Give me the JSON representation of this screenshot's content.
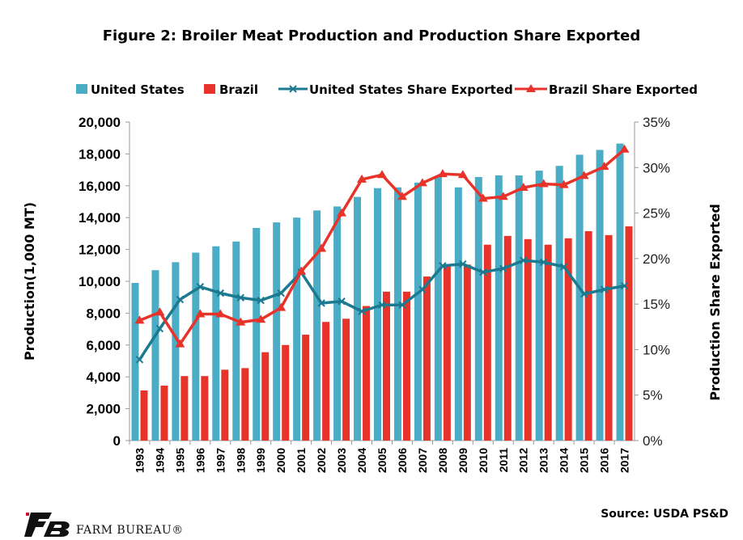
{
  "title": "Figure 2: Broiler Meat Production and Production Share Exported",
  "source": "Source: USDA PS&D",
  "brand": {
    "name": "FARM BUREAU®"
  },
  "colors": {
    "us": "#4bacc6",
    "brazil": "#e8332a",
    "us_line": "#1b7a8f",
    "brazil_line": "#e8332a"
  },
  "chart_data": {
    "type": "bar",
    "categories": [
      "1993",
      "1994",
      "1995",
      "1996",
      "1997",
      "1998",
      "1999",
      "2000",
      "2001",
      "2002",
      "2003",
      "2004",
      "2005",
      "2006",
      "2007",
      "2008",
      "2009",
      "2010",
      "2011",
      "2012",
      "2013",
      "2014",
      "2015",
      "2016",
      "2017"
    ],
    "ylabel": "Production(1,000 MT)",
    "y2label": "Production Share Exported",
    "ylim": [
      0,
      20000
    ],
    "y2lim": [
      0,
      35
    ],
    "yticks": [
      "0",
      "2,000",
      "4,000",
      "6,000",
      "8,000",
      "10,000",
      "12,000",
      "14,000",
      "16,000",
      "18,000",
      "20,000"
    ],
    "y2ticks": [
      "0%",
      "5%",
      "10%",
      "15%",
      "20%",
      "25%",
      "30%",
      "35%"
    ],
    "legend_position": "top",
    "series": [
      {
        "name": "United States",
        "kind": "bar",
        "values": [
          9900,
          10700,
          11200,
          11800,
          12200,
          12500,
          13350,
          13700,
          14000,
          14450,
          14700,
          15300,
          15850,
          15900,
          16200,
          16550,
          15900,
          16550,
          16650,
          16650,
          16950,
          17250,
          17950,
          18250,
          18650
        ]
      },
      {
        "name": "Brazil",
        "kind": "bar",
        "values": [
          3150,
          3450,
          4050,
          4050,
          4450,
          4550,
          5550,
          6000,
          6650,
          7450,
          7650,
          8450,
          9350,
          9350,
          10300,
          11050,
          11050,
          12300,
          12850,
          12650,
          12300,
          12700,
          13150,
          12900,
          13450
        ]
      },
      {
        "name": "United States Share Exported",
        "kind": "line",
        "axis": "right",
        "values": [
          8.9,
          12.3,
          15.5,
          16.9,
          16.2,
          15.7,
          15.4,
          16.2,
          18.5,
          15.1,
          15.3,
          14.2,
          14.9,
          14.9,
          16.6,
          19.2,
          19.4,
          18.5,
          18.9,
          19.8,
          19.6,
          19.1,
          16.1,
          16.6,
          17.0
        ]
      },
      {
        "name": "Brazil Share Exported",
        "kind": "line",
        "axis": "right",
        "values": [
          13.2,
          14.1,
          10.6,
          13.9,
          13.9,
          13.0,
          13.3,
          14.6,
          18.6,
          21.1,
          25.0,
          28.7,
          29.2,
          26.8,
          28.3,
          29.3,
          29.2,
          26.6,
          26.8,
          27.8,
          28.2,
          28.1,
          29.1,
          30.1,
          32.0
        ]
      }
    ]
  }
}
